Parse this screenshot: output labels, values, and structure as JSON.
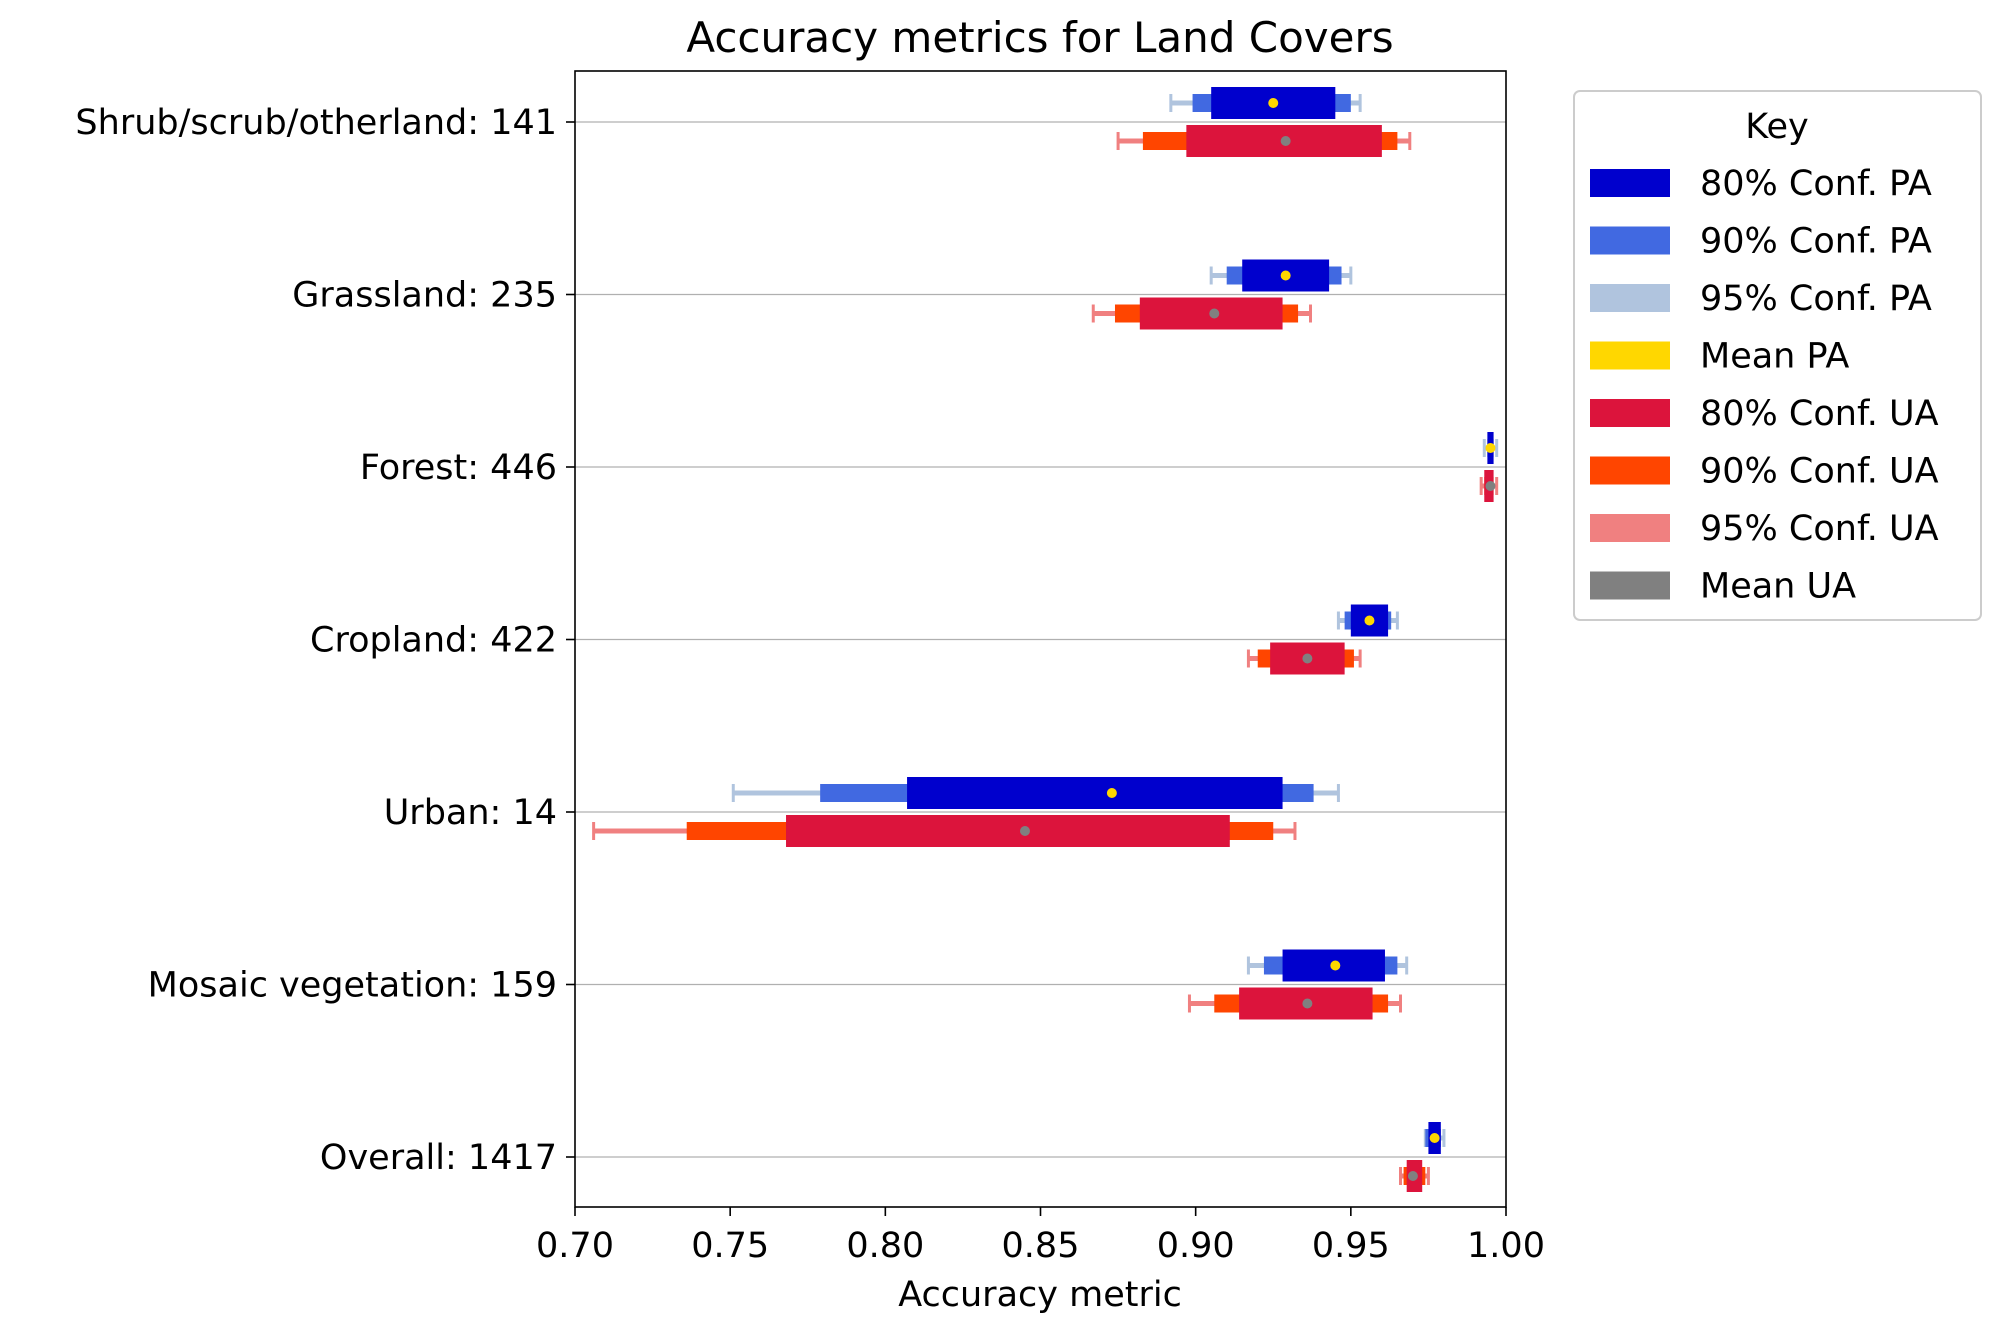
{
  "chart_data": {
    "type": "interval",
    "title": "Accuracy metrics for Land Covers",
    "xlabel": "Accuracy metric",
    "ylabel": "",
    "xlim": [
      0.7,
      1.0
    ],
    "xticks": [
      "0.70",
      "0.75",
      "0.80",
      "0.85",
      "0.90",
      "0.95",
      "1.00"
    ],
    "grid": "horizontal",
    "legend": {
      "title": "Key",
      "placement": "outside-right-top",
      "items": [
        {
          "label": "80% Conf. PA",
          "color": "#0000cd"
        },
        {
          "label": "90% Conf. PA",
          "color": "#4169e1"
        },
        {
          "label": "95% Conf. PA",
          "color": "#b0c4de"
        },
        {
          "label": "Mean PA",
          "color": "#ffd700"
        },
        {
          "label": "80% Conf. UA",
          "color": "#dc143c"
        },
        {
          "label": "90% Conf. UA",
          "color": "#ff4500"
        },
        {
          "label": "95% Conf. UA",
          "color": "#f08080"
        },
        {
          "label": "Mean UA",
          "color": "#808080"
        }
      ]
    },
    "categories": [
      {
        "label": "Shrub/scrub/otherland: 141",
        "pa": {
          "mean": 0.925,
          "ci80": [
            0.905,
            0.945
          ],
          "ci90": [
            0.899,
            0.95
          ],
          "ci95": [
            0.892,
            0.953
          ]
        },
        "ua": {
          "mean": 0.929,
          "ci80": [
            0.897,
            0.96
          ],
          "ci90": [
            0.883,
            0.965
          ],
          "ci95": [
            0.875,
            0.969
          ]
        }
      },
      {
        "label": "Grassland: 235",
        "pa": {
          "mean": 0.929,
          "ci80": [
            0.915,
            0.943
          ],
          "ci90": [
            0.91,
            0.947
          ],
          "ci95": [
            0.905,
            0.95
          ]
        },
        "ua": {
          "mean": 0.906,
          "ci80": [
            0.882,
            0.928
          ],
          "ci90": [
            0.874,
            0.933
          ],
          "ci95": [
            0.867,
            0.937
          ]
        }
      },
      {
        "label": "Forest: 446",
        "pa": {
          "mean": 0.995,
          "ci80": [
            0.994,
            0.996
          ],
          "ci90": [
            0.994,
            0.996
          ],
          "ci95": [
            0.993,
            0.997
          ]
        },
        "ua": {
          "mean": 0.995,
          "ci80": [
            0.993,
            0.996
          ],
          "ci90": [
            0.993,
            0.996
          ],
          "ci95": [
            0.992,
            0.997
          ]
        }
      },
      {
        "label": "Cropland: 422",
        "pa": {
          "mean": 0.956,
          "ci80": [
            0.95,
            0.962
          ],
          "ci90": [
            0.948,
            0.963
          ],
          "ci95": [
            0.946,
            0.965
          ]
        },
        "ua": {
          "mean": 0.936,
          "ci80": [
            0.924,
            0.948
          ],
          "ci90": [
            0.92,
            0.951
          ],
          "ci95": [
            0.917,
            0.953
          ]
        }
      },
      {
        "label": "Urban: 14",
        "pa": {
          "mean": 0.873,
          "ci80": [
            0.807,
            0.928
          ],
          "ci90": [
            0.779,
            0.938
          ],
          "ci95": [
            0.751,
            0.946
          ]
        },
        "ua": {
          "mean": 0.845,
          "ci80": [
            0.768,
            0.911
          ],
          "ci90": [
            0.736,
            0.925
          ],
          "ci95": [
            0.706,
            0.932
          ]
        }
      },
      {
        "label": "Mosaic vegetation: 159",
        "pa": {
          "mean": 0.945,
          "ci80": [
            0.928,
            0.961
          ],
          "ci90": [
            0.922,
            0.965
          ],
          "ci95": [
            0.917,
            0.968
          ]
        },
        "ua": {
          "mean": 0.936,
          "ci80": [
            0.914,
            0.957
          ],
          "ci90": [
            0.906,
            0.962
          ],
          "ci95": [
            0.898,
            0.966
          ]
        }
      },
      {
        "label": "Overall: 1417",
        "pa": {
          "mean": 0.977,
          "ci80": [
            0.975,
            0.979
          ],
          "ci90": [
            0.974,
            0.979
          ],
          "ci95": [
            0.974,
            0.98
          ]
        },
        "ua": {
          "mean": 0.97,
          "ci80": [
            0.968,
            0.973
          ],
          "ci90": [
            0.967,
            0.974
          ],
          "ci95": [
            0.966,
            0.975
          ]
        }
      }
    ]
  }
}
